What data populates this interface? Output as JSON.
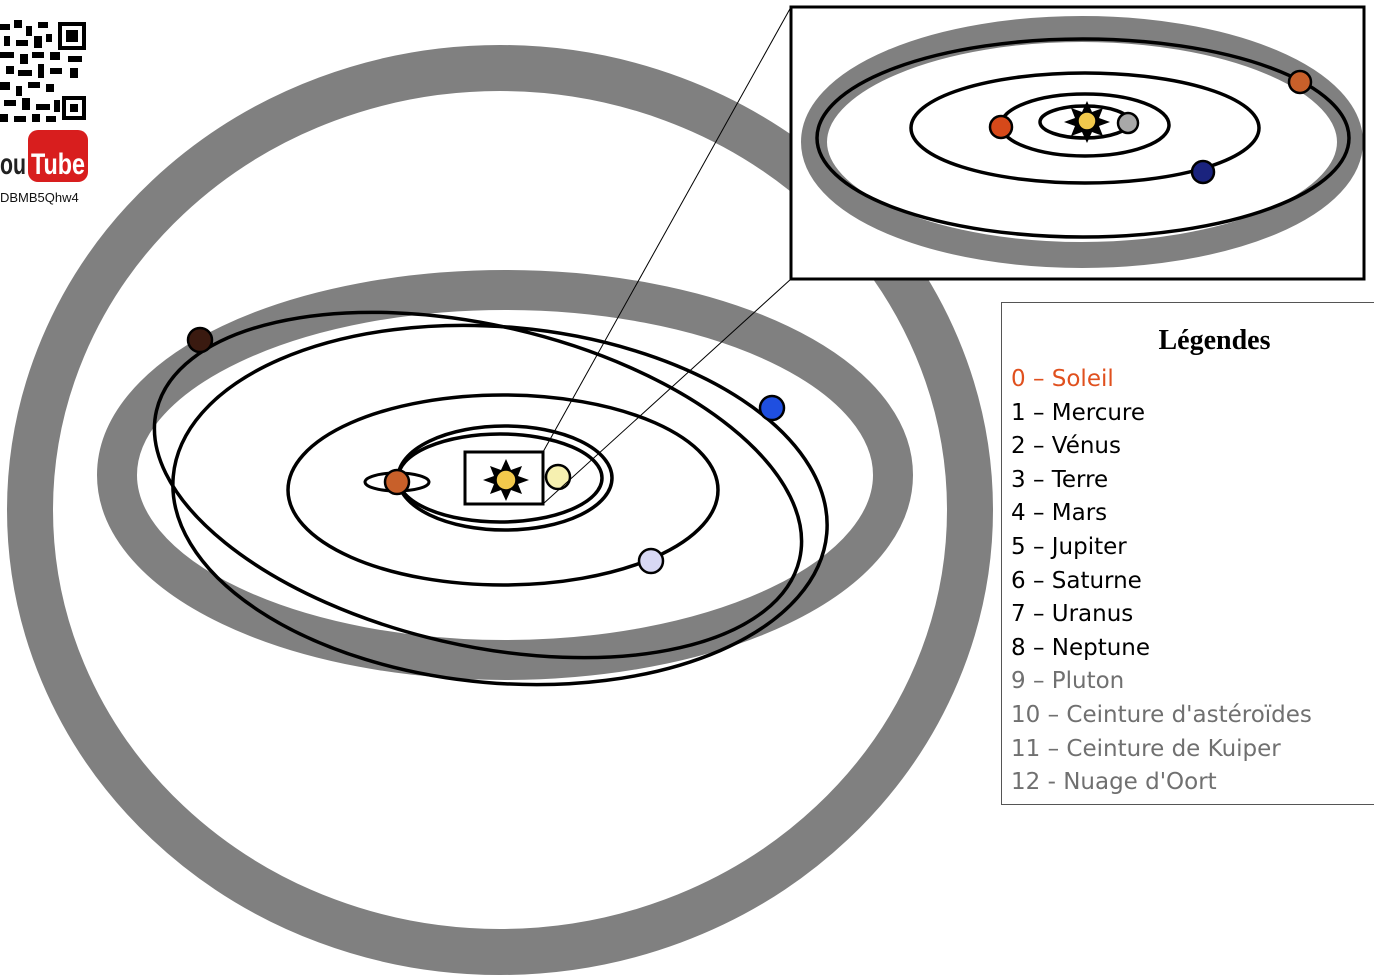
{
  "qr": {
    "youtube_logo": [
      "ou",
      "Tube"
    ],
    "video_code": "DBMB5Qhw4"
  },
  "legend": {
    "title": "Légendes",
    "items": [
      {
        "label": "0 – Soleil",
        "color": "#e0501e"
      },
      {
        "label": "1 – Mercure",
        "color": "#000000"
      },
      {
        "label": "2 – Vénus",
        "color": "#000000"
      },
      {
        "label": "3 – Terre",
        "color": "#000000"
      },
      {
        "label": "4 – Mars",
        "color": "#000000"
      },
      {
        "label": "5 – Jupiter",
        "color": "#000000"
      },
      {
        "label": "6 – Saturne",
        "color": "#000000"
      },
      {
        "label": "7 – Uranus",
        "color": "#000000"
      },
      {
        "label": "8 – Neptune",
        "color": "#000000"
      },
      {
        "label": "9 – Pluton",
        "color": "#707070"
      },
      {
        "label": "10 – Ceinture d'astéroïdes",
        "color": "#707070"
      },
      {
        "label": "11 – Ceinture de Kuiper",
        "color": "#707070"
      },
      {
        "label": "12  - Nuage d'Oort",
        "color": "#707070"
      }
    ]
  },
  "colors": {
    "belt": "#808080",
    "orbit": "#000000",
    "sun": "#f2c94c",
    "mercury": "#a8a8a8",
    "venus": "#f6f0b0",
    "earth": "#1a237e",
    "mars": "#c8602a",
    "jupiter": "#c8602a",
    "saturn": "#d6491a",
    "uranus": "#d8d8f4",
    "neptune": "#1f4fe0",
    "pluto": "#3a1a10"
  }
}
